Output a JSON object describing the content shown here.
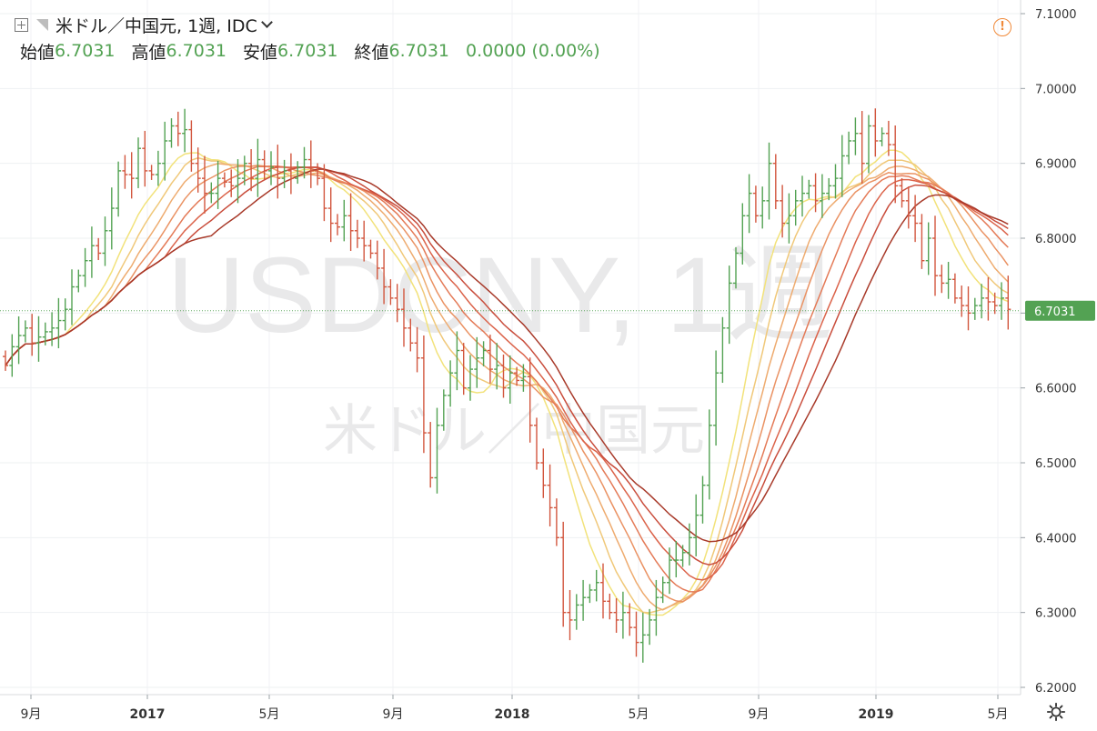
{
  "header": {
    "symbol": "米ドル／中国元, 1週, IDC",
    "open_label": "始値",
    "open": "6.7031",
    "high_label": "高値",
    "high": "6.7031",
    "low_label": "安値",
    "low": "6.7031",
    "close_label": "終値",
    "close": "6.7031",
    "change": "0.0000 (0.00%)"
  },
  "watermark": {
    "line1": "USDCNY, 1週",
    "line2": "米ドル／中国元"
  },
  "icons": {
    "alert": "alert-icon",
    "settings": "gear-icon",
    "add": "plus-icon",
    "menu": "chevron-down-icon"
  },
  "colors": {
    "up": "#53a253",
    "down": "#d2563e",
    "last_price_tag": "#53a253",
    "ribbon": [
      "#f2e27a",
      "#f0c879",
      "#eeab6f",
      "#ea9263",
      "#e47a57",
      "#db634a",
      "#c94d3c",
      "#a83a2a"
    ]
  },
  "chart_data": {
    "type": "ohlc",
    "subtype": "weekly ohlc bars with 8-line moving average ribbon",
    "ylim": [
      6.2,
      7.1
    ],
    "y_ticks": [
      "7.1000",
      "7.0000",
      "6.9000",
      "6.8000",
      "6.7000",
      "6.6000",
      "6.5000",
      "6.4000",
      "6.3000",
      "6.2000"
    ],
    "x_ticks": [
      "9月",
      "2017",
      "5月",
      "9月",
      "2018",
      "5月",
      "9月",
      "2019",
      "5月"
    ],
    "last_price": 6.7031,
    "last_price_label": "6.7031",
    "grid": true,
    "close": [
      6.63,
      6.655,
      6.67,
      6.68,
      6.66,
      6.668,
      6.675,
      6.68,
      6.69,
      6.705,
      6.735,
      6.75,
      6.77,
      6.79,
      6.78,
      6.81,
      6.84,
      6.89,
      6.885,
      6.88,
      6.92,
      6.89,
      6.885,
      6.9,
      6.93,
      6.95,
      6.94,
      6.945,
      6.9,
      6.88,
      6.86,
      6.86,
      6.88,
      6.875,
      6.87,
      6.88,
      6.9,
      6.88,
      6.905,
      6.89,
      6.895,
      6.88,
      6.89,
      6.88,
      6.895,
      6.905,
      6.89,
      6.88,
      6.84,
      6.82,
      6.815,
      6.83,
      6.81,
      6.8,
      6.79,
      6.78,
      6.76,
      6.735,
      6.72,
      6.705,
      6.68,
      6.66,
      6.64,
      6.54,
      6.48,
      6.55,
      6.59,
      6.62,
      6.65,
      6.6,
      6.625,
      6.64,
      6.65,
      6.625,
      6.63,
      6.6,
      6.62,
      6.61,
      6.615,
      6.55,
      6.5,
      6.47,
      6.44,
      6.4,
      6.3,
      6.29,
      6.31,
      6.32,
      6.33,
      6.34,
      6.315,
      6.3,
      6.29,
      6.3,
      6.28,
      6.26,
      6.27,
      6.29,
      6.32,
      6.34,
      6.37,
      6.37,
      6.38,
      6.4,
      6.43,
      6.47,
      6.55,
      6.62,
      6.68,
      6.74,
      6.78,
      6.83,
      6.86,
      6.83,
      6.85,
      6.9,
      6.85,
      6.82,
      6.83,
      6.85,
      6.86,
      6.87,
      6.85,
      6.86,
      6.87,
      6.88,
      6.91,
      6.93,
      6.94,
      6.9,
      6.95,
      6.93,
      6.94,
      6.925,
      6.87,
      6.85,
      6.83,
      6.82,
      6.77,
      6.8,
      6.75,
      6.74,
      6.745,
      6.72,
      6.71,
      6.7,
      6.71,
      6.72,
      6.715,
      6.71,
      6.72,
      6.705
    ]
  }
}
